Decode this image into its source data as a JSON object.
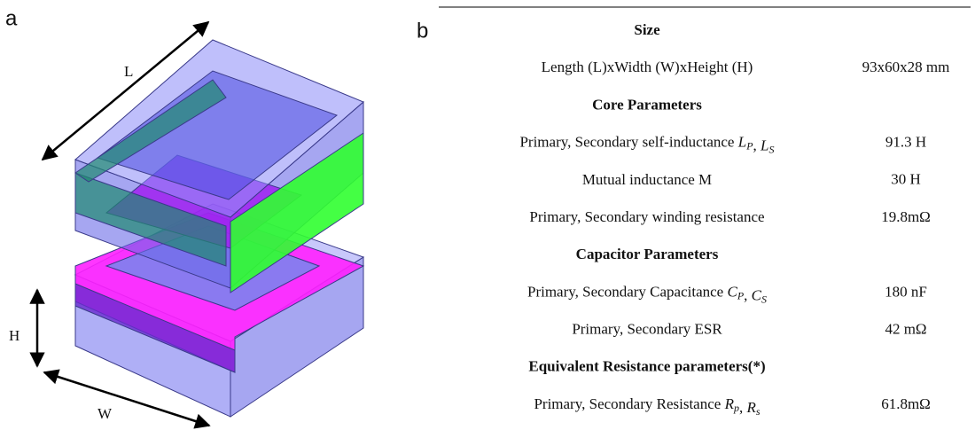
{
  "panels": [
    "a",
    "b"
  ],
  "figure": {
    "labels": {
      "length": "L",
      "height": "H",
      "width": "W"
    }
  },
  "table": {
    "sections": [
      {
        "header": "Size",
        "rows": [
          {
            "label": [
              "Length (L)xWidth (W)xHeight (H)"
            ],
            "value": "93x60x28 mm"
          }
        ]
      },
      {
        "header": "Core Parameters",
        "rows": [
          {
            "label": [
              "Primary, Secondary self-inductance ",
              {
                "base": "L",
                "sub": "P"
              },
              ", ",
              {
                "base": "L",
                "sub": "S"
              }
            ],
            "value": "91.3 H"
          },
          {
            "label": [
              "Mutual inductance M"
            ],
            "value": "30 H"
          },
          {
            "label": [
              "Primary, Secondary winding resistance"
            ],
            "value": "19.8mΩ"
          }
        ]
      },
      {
        "header": "Capacitor Parameters",
        "rows": [
          {
            "label": [
              "Primary, Secondary Capacitance ",
              {
                "base": "C",
                "sub": "P"
              },
              ", ",
              {
                "base": "C",
                "sub": "S"
              }
            ],
            "value": "180 nF"
          },
          {
            "label": [
              "Primary, Secondary ESR"
            ],
            "value": "42 mΩ"
          }
        ]
      },
      {
        "header": "Equivalent Resistance parameters(*)",
        "rows": [
          {
            "label": [
              "Primary, Secondary Resistance ",
              {
                "base": "R",
                "sub": "p"
              },
              ", ",
              {
                "base": "R",
                "sub": "s"
              }
            ],
            "value": "61.8mΩ"
          }
        ]
      }
    ]
  }
}
